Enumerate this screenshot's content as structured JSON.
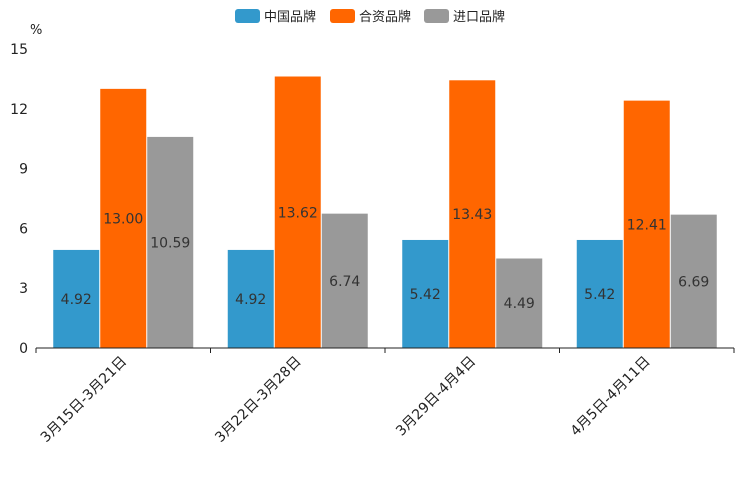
{
  "chart_data": {
    "type": "bar",
    "unit": "%",
    "categories": [
      "3月15日-3月21日",
      "3月22日-3月28日",
      "3月29日-4月4日",
      "4月5日-4月11日"
    ],
    "series": [
      {
        "name": "中国品牌",
        "color": "#3399cc",
        "values": [
          4.92,
          4.92,
          5.42,
          5.42
        ],
        "labels": [
          "4.92",
          "4.92",
          "5.42",
          "5.42"
        ]
      },
      {
        "name": "合资品牌",
        "color": "#ff6600",
        "values": [
          13.0,
          13.62,
          13.43,
          12.41
        ],
        "labels": [
          "13.00",
          "13.62",
          "13.43",
          "12.41"
        ]
      },
      {
        "name": "进口品牌",
        "color": "#999999",
        "values": [
          10.59,
          6.74,
          4.49,
          6.69
        ],
        "labels": [
          "10.59",
          "6.74",
          "4.49",
          "6.69"
        ]
      }
    ],
    "ylim": [
      0,
      15
    ],
    "yticks": [
      "0",
      "3",
      "6",
      "9",
      "12",
      "15"
    ],
    "legend_position": "top-center",
    "grid": false
  }
}
